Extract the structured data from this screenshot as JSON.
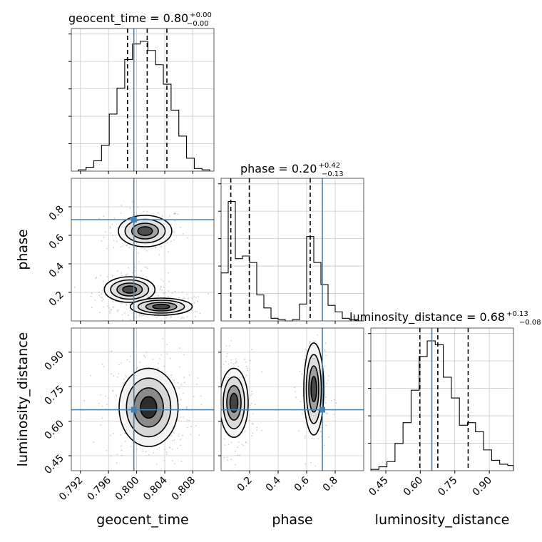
{
  "chart_data": {
    "type": "corner",
    "parameters": [
      "geocent_time",
      "phase",
      "luminosity_distance"
    ],
    "truths": {
      "geocent_time": 0.7996,
      "phase": 0.71,
      "luminosity_distance": 0.65
    },
    "quantile_lines": {
      "geocent_time": [
        0.7987,
        0.8015,
        0.8043
      ],
      "phase": [
        0.068,
        0.198,
        0.625
      ],
      "luminosity_distance": [
        0.598,
        0.676,
        0.808
      ]
    },
    "titles": [
      {
        "param": "geocent_time",
        "text": "geocent_time = 0.80",
        "sup": "+0.00",
        "sub": "−0.00"
      },
      {
        "param": "phase",
        "text": "phase = 0.20",
        "sup": "+0.42",
        "sub": "−0.13"
      },
      {
        "param": "luminosity_distance",
        "text": "luminosity_distance = 0.68",
        "sup": "+0.13",
        "sub": "−0.08"
      }
    ],
    "axis_labels": {
      "x": [
        "geocent_time",
        "phase",
        "luminosity_distance"
      ],
      "y": [
        "phase",
        "luminosity_distance"
      ]
    },
    "ranges": {
      "geocent_time": [
        0.7907,
        0.811
      ],
      "phase": [
        0.0,
        1.0
      ],
      "luminosity_distance": [
        0.385,
        1.005
      ]
    },
    "ticks": {
      "geocent_time": {
        "values": [
          0.792,
          0.796,
          0.8,
          0.804,
          0.808
        ],
        "labels": [
          "0.792",
          "0.796",
          "0.800",
          "0.804",
          "0.808"
        ]
      },
      "phase": {
        "values": [
          0.2,
          0.4,
          0.6,
          0.8
        ],
        "labels": [
          "0.2",
          "0.4",
          "0.6",
          "0.8"
        ]
      },
      "luminosity_distance": {
        "values": [
          0.45,
          0.6,
          0.75,
          0.9
        ],
        "labels": [
          "0.45",
          "0.60",
          "0.75",
          "0.90"
        ]
      }
    },
    "histograms": {
      "geocent_time": {
        "edges": [
          0.7917,
          0.7928,
          0.7939,
          0.795,
          0.7961,
          0.7972,
          0.7983,
          0.7994,
          0.8005,
          0.8016,
          0.8027,
          0.8038,
          0.8049,
          0.806,
          0.8071,
          0.8082,
          0.8093,
          0.8104
        ],
        "values": [
          0.01,
          0.03,
          0.08,
          0.2,
          0.44,
          0.64,
          0.86,
          0.98,
          1.0,
          0.93,
          0.82,
          0.67,
          0.47,
          0.27,
          0.1,
          0.02,
          0.01
        ]
      },
      "phase": {
        "edges": [
          0.0,
          0.05,
          0.1,
          0.15,
          0.2,
          0.25,
          0.3,
          0.35,
          0.4,
          0.45,
          0.5,
          0.55,
          0.6,
          0.65,
          0.7,
          0.75,
          0.8,
          0.85,
          0.9,
          0.95,
          1.0
        ],
        "values": [
          0.37,
          0.92,
          0.48,
          0.5,
          0.45,
          0.2,
          0.1,
          0.02,
          0.01,
          0.0,
          0.01,
          0.13,
          0.65,
          0.45,
          0.28,
          0.12,
          0.07,
          0.02,
          0.01,
          0.0
        ]
      },
      "luminosity_distance": {
        "edges": [
          0.385,
          0.42,
          0.455,
          0.49,
          0.525,
          0.56,
          0.595,
          0.63,
          0.665,
          0.7,
          0.735,
          0.77,
          0.805,
          0.84,
          0.875,
          0.91,
          0.945,
          0.98,
          1.005
        ],
        "values": [
          0.01,
          0.03,
          0.07,
          0.21,
          0.37,
          0.62,
          0.88,
          1.0,
          0.97,
          0.72,
          0.56,
          0.35,
          0.37,
          0.3,
          0.16,
          0.08,
          0.05,
          0.04
        ]
      }
    },
    "pair_blobs": {
      "phase_vs_geocent_time": [
        {
          "cx": 0.8012,
          "cy": 0.63,
          "sx": 0.0019,
          "sy": 0.055,
          "w": 0.35
        },
        {
          "cx": 0.799,
          "cy": 0.22,
          "sx": 0.0018,
          "sy": 0.045,
          "w": 0.4
        },
        {
          "cx": 0.8035,
          "cy": 0.1,
          "sx": 0.0022,
          "sy": 0.03,
          "w": 0.55
        }
      ],
      "luminosity_distance_vs_geocent_time": [
        {
          "cx": 0.8017,
          "cy": 0.66,
          "sx": 0.0021,
          "sy": 0.085,
          "w": 1.0
        }
      ],
      "luminosity_distance_vs_phase": [
        {
          "cx": 0.09,
          "cy": 0.68,
          "sx": 0.05,
          "sy": 0.075,
          "w": 0.55
        },
        {
          "cx": 0.65,
          "cy": 0.74,
          "sx": 0.035,
          "sy": 0.1,
          "w": 0.45
        }
      ]
    },
    "grid": true,
    "truth_color": "#4682b4"
  }
}
